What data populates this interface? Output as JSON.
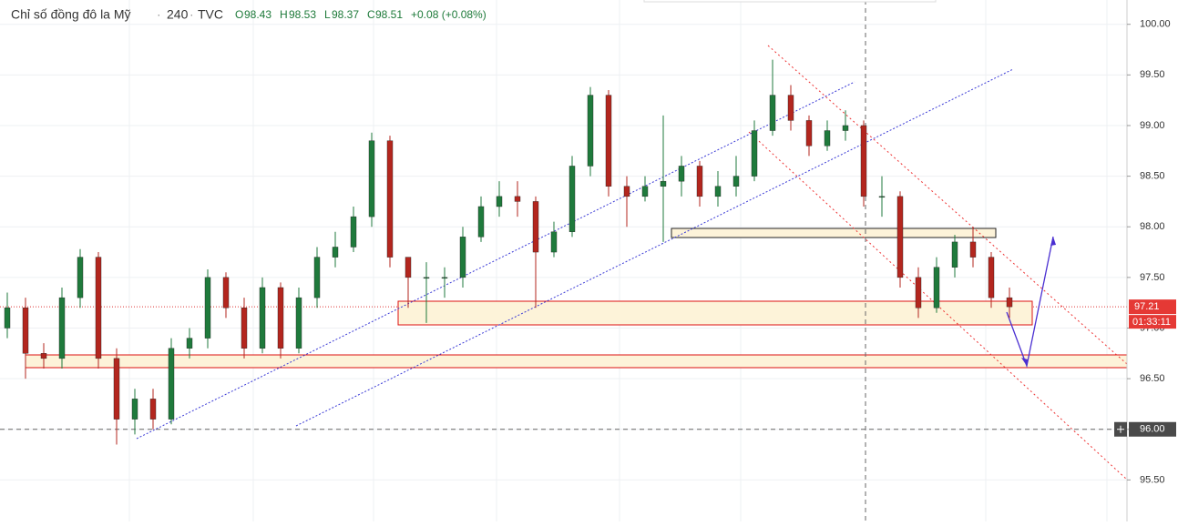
{
  "chart_data": {
    "type": "candlestick",
    "title": "Chỉ số đồng đô la Mỹ",
    "interval": "240",
    "source": "TVC",
    "legend": {
      "open_label": "O",
      "open": 98.43,
      "high_label": "H",
      "high": 98.53,
      "low_label": "L",
      "low": 98.37,
      "close_label": "C",
      "close": 98.51,
      "change": "+0.08 (+0.08%)"
    },
    "up_color": "#1f7a3c",
    "down_color": "#b3261e",
    "open": [
      97.0,
      97.2,
      96.75,
      96.7,
      97.3,
      97.7,
      96.7,
      96.1,
      96.3,
      96.1,
      96.8,
      96.9,
      97.5,
      97.2,
      96.8,
      97.4,
      96.8,
      97.3,
      97.7,
      97.8,
      98.1,
      98.85,
      97.7,
      97.5,
      97.5,
      97.5,
      97.9,
      98.2,
      98.3,
      98.25,
      97.75,
      97.95,
      98.6,
      99.3,
      98.4,
      98.3,
      98.4,
      98.45,
      98.6,
      98.3,
      98.4,
      98.5,
      98.95,
      99.3,
      99.05,
      98.8,
      98.95,
      99.0,
      98.3,
      98.3,
      97.5,
      97.2,
      97.6,
      97.85,
      97.7,
      97.3
    ],
    "high": [
      97.35,
      97.3,
      96.85,
      97.4,
      97.78,
      97.75,
      96.8,
      96.4,
      96.4,
      96.9,
      97.0,
      97.58,
      97.55,
      97.3,
      97.5,
      97.45,
      97.4,
      97.8,
      97.95,
      98.2,
      98.93,
      98.9,
      97.7,
      97.65,
      97.6,
      98.0,
      98.3,
      98.45,
      98.45,
      98.3,
      98.05,
      98.7,
      99.38,
      99.35,
      98.5,
      98.5,
      99.1,
      98.7,
      98.65,
      98.55,
      98.7,
      99.05,
      99.65,
      99.4,
      99.1,
      99.05,
      99.15,
      99.05,
      98.5,
      98.35,
      97.6,
      97.7,
      97.92,
      98.0,
      97.75,
      97.4
    ],
    "low": [
      96.9,
      96.5,
      96.6,
      96.6,
      97.2,
      96.6,
      95.85,
      95.95,
      96.0,
      96.05,
      96.7,
      96.8,
      97.1,
      96.7,
      96.75,
      96.7,
      96.75,
      97.2,
      97.6,
      97.75,
      98.0,
      97.6,
      97.2,
      97.05,
      97.3,
      97.4,
      97.85,
      98.1,
      98.1,
      97.2,
      97.7,
      97.9,
      98.5,
      98.3,
      98.0,
      98.25,
      97.85,
      98.3,
      98.2,
      98.2,
      98.3,
      98.45,
      98.9,
      98.95,
      98.7,
      98.75,
      98.85,
      98.2,
      98.1,
      97.4,
      97.1,
      97.15,
      97.5,
      97.6,
      97.2,
      97.1
    ],
    "close": [
      97.2,
      96.75,
      96.7,
      97.3,
      97.7,
      96.7,
      96.1,
      96.3,
      96.1,
      96.8,
      96.9,
      97.5,
      97.2,
      96.8,
      97.4,
      96.8,
      97.3,
      97.7,
      97.8,
      98.1,
      98.85,
      97.7,
      97.5,
      97.5,
      97.5,
      97.9,
      98.2,
      98.3,
      98.25,
      97.75,
      97.95,
      98.6,
      99.3,
      98.4,
      98.3,
      98.4,
      98.45,
      98.6,
      98.3,
      98.4,
      98.5,
      98.95,
      99.3,
      99.05,
      98.8,
      98.95,
      99.0,
      98.3,
      98.3,
      97.5,
      97.2,
      97.6,
      97.85,
      97.7,
      97.3,
      97.21
    ],
    "ylim": [
      95.09,
      100.24
    ],
    "yticks": [
      {
        "value": 95.5,
        "label": "95.50"
      },
      {
        "value": 96,
        "label": "96.00"
      },
      {
        "value": 96.5,
        "label": "96.50"
      },
      {
        "value": 97,
        "label": "97.00"
      },
      {
        "value": 97.5,
        "label": "97.50"
      },
      {
        "value": 98,
        "label": "98.00"
      },
      {
        "value": 98.5,
        "label": "98.50"
      },
      {
        "value": 99,
        "label": "99.00"
      },
      {
        "value": 99.5,
        "label": "99.50"
      },
      {
        "value": 100,
        "label": "100.00"
      }
    ],
    "grid": true,
    "last_price": 97.21,
    "countdown": "01:33:11",
    "crosshair": {
      "value": 96,
      "label": "96.00"
    }
  }
}
